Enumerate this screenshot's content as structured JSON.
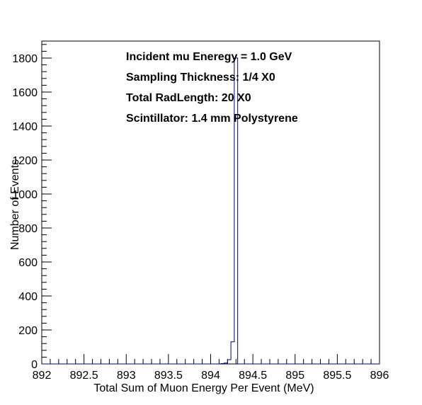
{
  "chart_data": {
    "type": "histogram",
    "title": "",
    "xlabel": "Total Sum of Muon Energy Per Event (MeV)",
    "ylabel": "Number of Events",
    "xlim": [
      892,
      896
    ],
    "ylim": [
      0,
      1900
    ],
    "x_ticks": [
      "892",
      "892.5",
      "893",
      "893.5",
      "894",
      "894.5",
      "895",
      "895.5",
      "896"
    ],
    "y_ticks": [
      "0",
      "200",
      "400",
      "600",
      "800",
      "1000",
      "1200",
      "1400",
      "1600",
      "1800"
    ],
    "grid": false,
    "line_color": "#000080",
    "bins": [
      {
        "x0": 894.12,
        "x1": 894.16,
        "value": 2
      },
      {
        "x0": 894.16,
        "x1": 894.2,
        "value": 5
      },
      {
        "x0": 894.2,
        "x1": 894.24,
        "value": 25
      },
      {
        "x0": 894.24,
        "x1": 894.28,
        "value": 130
      },
      {
        "x0": 894.28,
        "x1": 894.32,
        "value": 1800
      }
    ],
    "annotations": [
      "Incident mu Eneregy = 1.0 GeV",
      "Sampling Thickness: 1/4 X0",
      "Total RadLength: 20 X0",
      "Scintillator: 1.4 mm Polystyrene"
    ]
  }
}
